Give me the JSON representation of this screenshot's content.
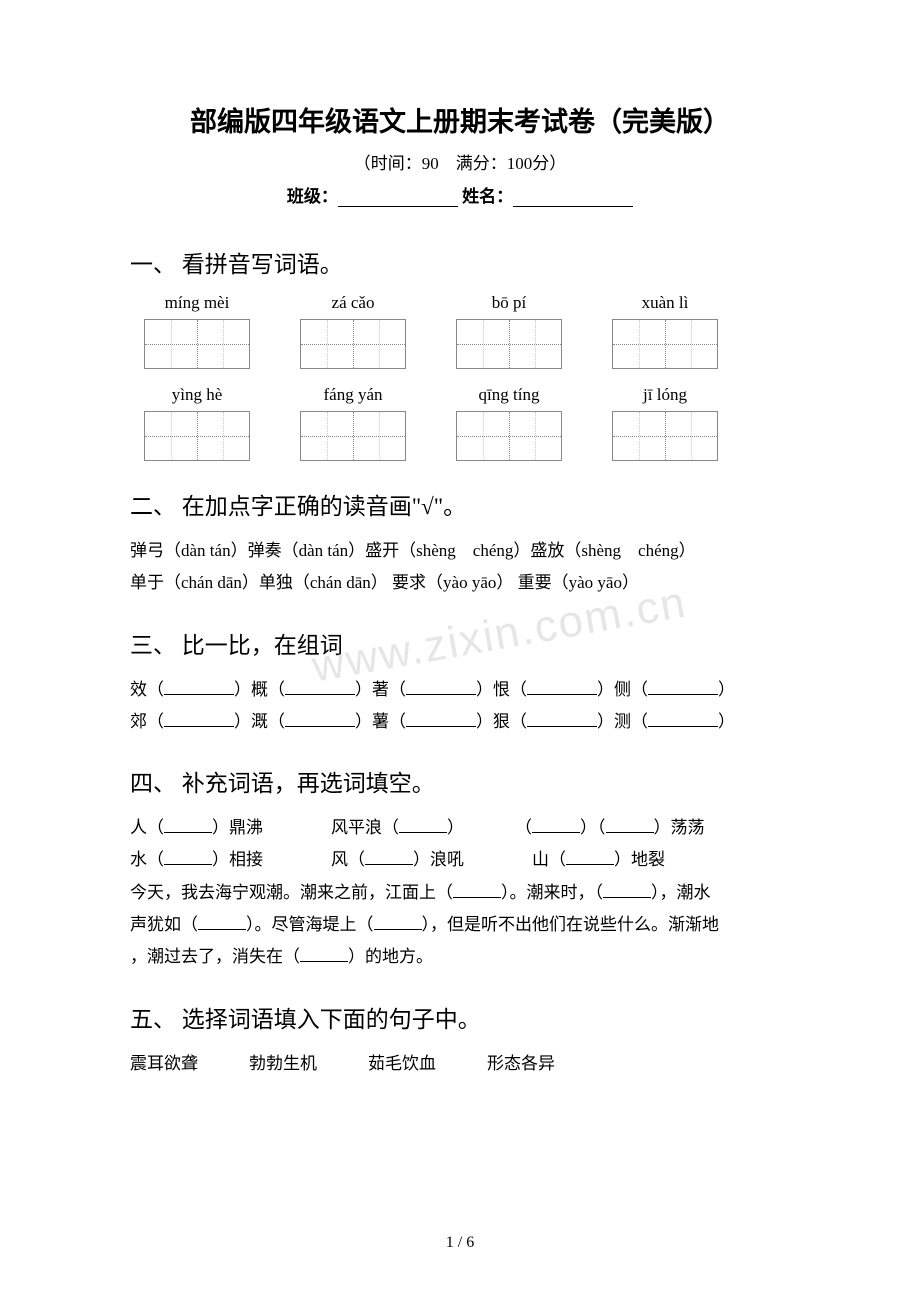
{
  "title": "部编版四年级语文上册期末考试卷（完美版）",
  "subtitle": "（时间：90　满分：100分）",
  "fill_class": "班级：",
  "fill_name": " 姓名：",
  "sections": {
    "s1": {
      "head": "一、 看拼音写词语。",
      "row1": [
        "míng mèi",
        "zá cǎo",
        "bō pí",
        "xuàn lì"
      ],
      "row2": [
        "yìng hè",
        "fáng yán",
        "qīng tíng",
        "jī lóng"
      ]
    },
    "s2": {
      "head": "二、 在加点字正确的读音画\"√\"。",
      "l1": "弹弓（dàn tán）弹奏（dàn tán）盛开（shèng　chéng）盛放（shèng　chéng）",
      "l2": "单于（chán dān）单独（chán dān） 要求（yào yāo） 重要（yào yāo）"
    },
    "s3": {
      "head": "三、 比一比，在组词",
      "w": [
        "效",
        "概",
        "著",
        "恨",
        "侧",
        "郊",
        "溉",
        "薯",
        "狠",
        "测"
      ]
    },
    "s4": {
      "head": "四、 补充词语，再选词填空。",
      "w": [
        "人（",
        "）鼎沸",
        "风平浪（",
        "）",
        "（",
        "）（",
        "）荡荡",
        "水（",
        "）相接",
        "风（",
        "）浪吼",
        "山（",
        "）地裂"
      ],
      "p1a": "今天，我去海宁观潮。潮来之前，江面上（",
      "p1b": "）。潮来时，（",
      "p1c": "），潮水",
      "p2a": "声犹如（",
      "p2b": "）。尽管海堤上（",
      "p2c": "），但是听不出他们在说些什么。渐渐地",
      "p3a": "，潮过去了，消失在（",
      "p3b": "）的地方。"
    },
    "s5": {
      "head": "五、 选择词语填入下面的句子中。",
      "opts": "震耳欲聋　　　勃勃生机　　　茹毛饮血　　　形态各异"
    }
  },
  "watermark": "www.zixin.com.cn",
  "pagenum": "1 / 6"
}
